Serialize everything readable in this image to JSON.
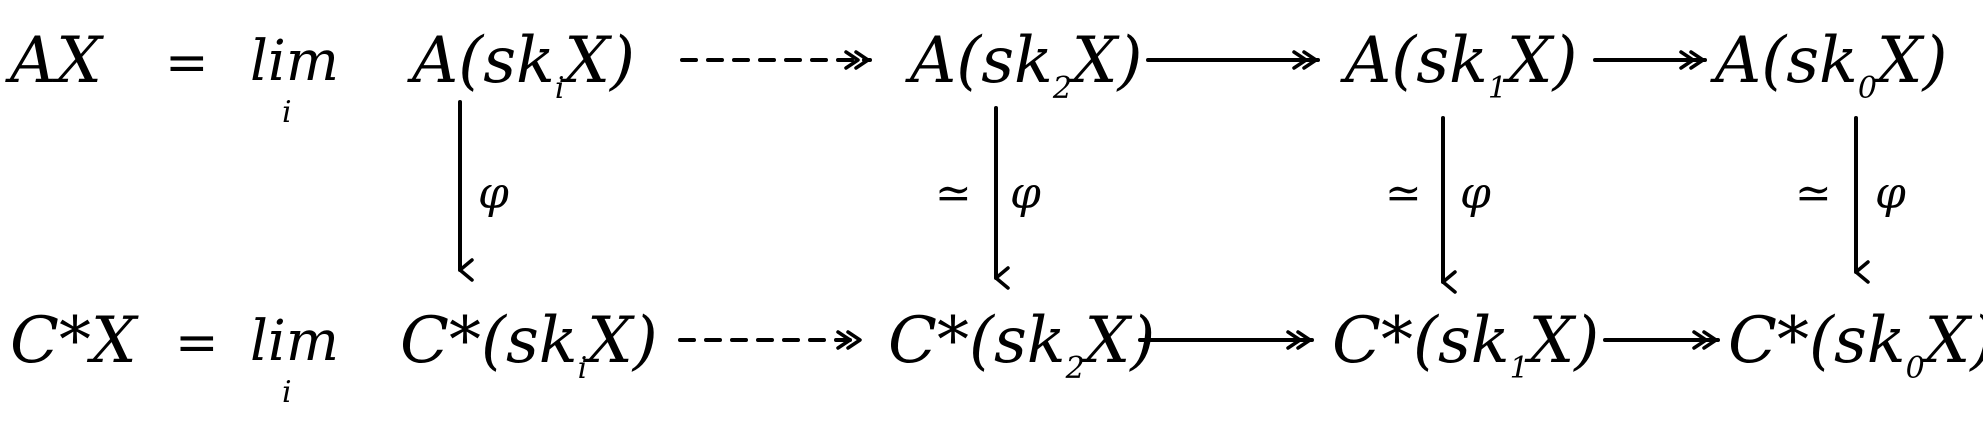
{
  "top_row": {
    "lhs": "AX",
    "eq": "=",
    "lim": "lim",
    "lim_index": "i",
    "terms": [
      {
        "head": "A(sk",
        "sub": "i",
        "tail": "X)"
      },
      {
        "head": "A(sk",
        "sub": "2",
        "tail": "X)"
      },
      {
        "head": "A(sk",
        "sub": "1",
        "tail": "X)"
      },
      {
        "head": "A(sk",
        "sub": "0",
        "tail": "X)"
      }
    ]
  },
  "bottom_row": {
    "lhs": "C*X",
    "eq": "=",
    "lim": "lim",
    "lim_index": "i",
    "terms": [
      {
        "head": "C*(sk",
        "sub": "i",
        "tail": "X)"
      },
      {
        "head": "C*(sk",
        "sub": "2",
        "tail": "X)"
      },
      {
        "head": "C*(sk",
        "sub": "1",
        "tail": "X)"
      },
      {
        "head": "C*(sk",
        "sub": "0",
        "tail": "X)"
      }
    ]
  },
  "vertical_maps": [
    {
      "label": "φ",
      "iso": ""
    },
    {
      "label": "φ",
      "iso": "≃"
    },
    {
      "label": "φ",
      "iso": "≃"
    },
    {
      "label": "φ",
      "iso": "≃"
    }
  ]
}
